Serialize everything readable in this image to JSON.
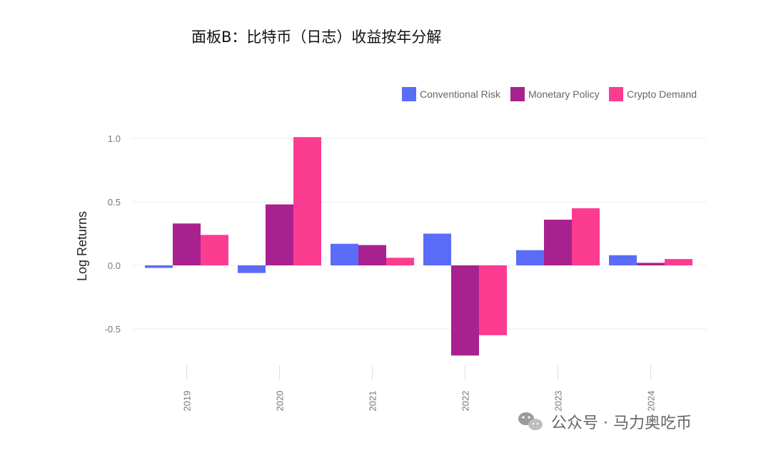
{
  "chart_data": {
    "type": "bar",
    "title": "面板B：比特币（日志）收益按年分解",
    "xlabel": "",
    "ylabel": "Log Returns",
    "categories": [
      "2019",
      "2020",
      "2021",
      "2022",
      "2023",
      "2024"
    ],
    "series": [
      {
        "name": "Conventional Risk",
        "color": "#5B6CF9",
        "values": [
          -0.02,
          -0.06,
          0.17,
          0.25,
          0.12,
          0.08
        ]
      },
      {
        "name": "Monetary Policy",
        "color": "#A8218E",
        "values": [
          0.33,
          0.48,
          0.16,
          -0.71,
          0.36,
          0.02
        ]
      },
      {
        "name": "Crypto Demand",
        "color": "#FC3C91",
        "values": [
          0.24,
          1.01,
          0.06,
          -0.55,
          0.45,
          0.05
        ]
      }
    ],
    "yticks": [
      "1.0",
      "0.5",
      "0.0",
      "-0.5"
    ],
    "ylim": [
      -0.8,
      1.05
    ],
    "grid": true,
    "legend_position": "top-right",
    "x_tick_rotation": "vertical"
  },
  "watermark": {
    "text": "公众号 · 马力奥吃币",
    "icon": "wechat-icon"
  }
}
